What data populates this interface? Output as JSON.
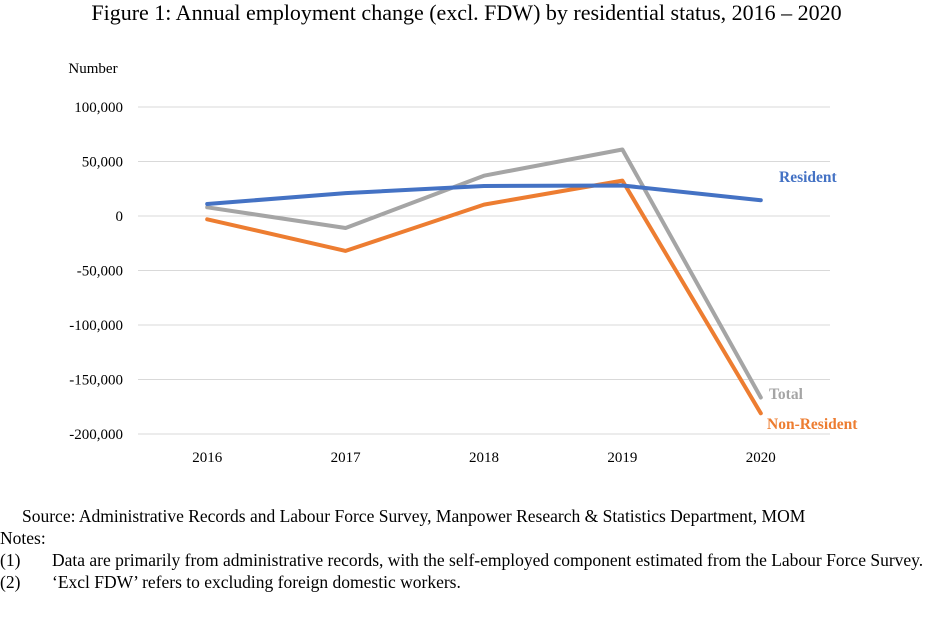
{
  "title": "Figure 1: Annual employment change (excl. FDW) by residential status, 2016 – 2020",
  "chart_data": {
    "type": "line",
    "title": "Figure 1: Annual employment change (excl. FDW) by residential status, 2016 – 2020",
    "ylabel": "Number",
    "xlabel": "",
    "categories": [
      "2016",
      "2017",
      "2018",
      "2019",
      "2020"
    ],
    "y_ticks": [
      100000,
      50000,
      0,
      -50000,
      -100000,
      -150000,
      -200000
    ],
    "y_tick_labels": [
      "100,000",
      "50,000",
      "0",
      "-50,000",
      "-100,000",
      "-150,000",
      "-200,000"
    ],
    "ylim": [
      -200000,
      100000
    ],
    "grid": "horizontal",
    "legend": "inline labels at line ends",
    "series": [
      {
        "name": "Resident",
        "color": "#4472c4",
        "values": [
          11000,
          21000,
          27500,
          28000,
          14500
        ]
      },
      {
        "name": "Total",
        "color": "#a5a5a5",
        "values": [
          8000,
          -11000,
          37000,
          61000,
          -166500
        ]
      },
      {
        "name": "Non-Resident",
        "color": "#ed7d31",
        "values": [
          -3000,
          -32000,
          10500,
          32500,
          -181000
        ]
      }
    ]
  },
  "source": "Source: Administrative Records and Labour Force Survey, Manpower Research & Statistics Department, MOM",
  "notes_heading": "Notes:",
  "notes": [
    {
      "num": "(1)",
      "text": "Data are primarily from administrative records, with the self-employed component estimated from the Labour Force Survey."
    },
    {
      "num": "(2)",
      "text": "‘Excl FDW’ refers to excluding foreign domestic workers."
    }
  ]
}
